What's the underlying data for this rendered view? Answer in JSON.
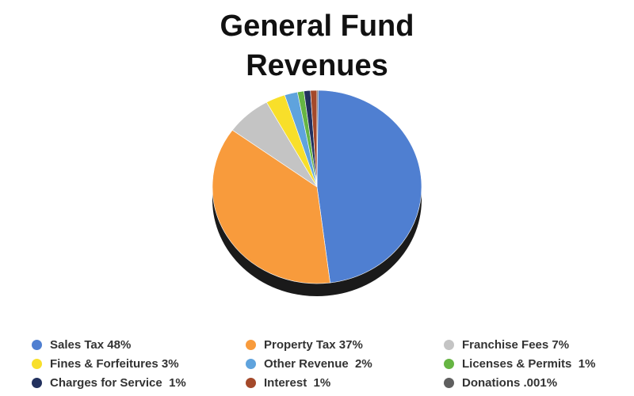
{
  "chart_data": {
    "type": "pie",
    "title": [
      "General Fund",
      "Revenues"
    ],
    "slices": [
      {
        "label": "Sales Tax 48%",
        "value": 48,
        "color": "#4f7fd1"
      },
      {
        "label": "Property Tax 37%",
        "value": 37,
        "color": "#f89b3c"
      },
      {
        "label": "Franchise Fees 7%",
        "value": 7,
        "color": "#c4c4c4"
      },
      {
        "label": "Fines & Forfeitures 3%",
        "value": 3,
        "color": "#f8df2a"
      },
      {
        "label": "Other Revenue  2%",
        "value": 2,
        "color": "#5fa3dd"
      },
      {
        "label": "Licenses & Permits  1%",
        "value": 1,
        "color": "#66b543"
      },
      {
        "label": "Charges for Service  1%",
        "value": 1,
        "color": "#22315e"
      },
      {
        "label": "Interest  1%",
        "value": 1,
        "color": "#a4492a"
      },
      {
        "label": "Donations .001%",
        "value": 0.001,
        "color": "#5f5f5f"
      }
    ],
    "legend_position": "bottom"
  }
}
